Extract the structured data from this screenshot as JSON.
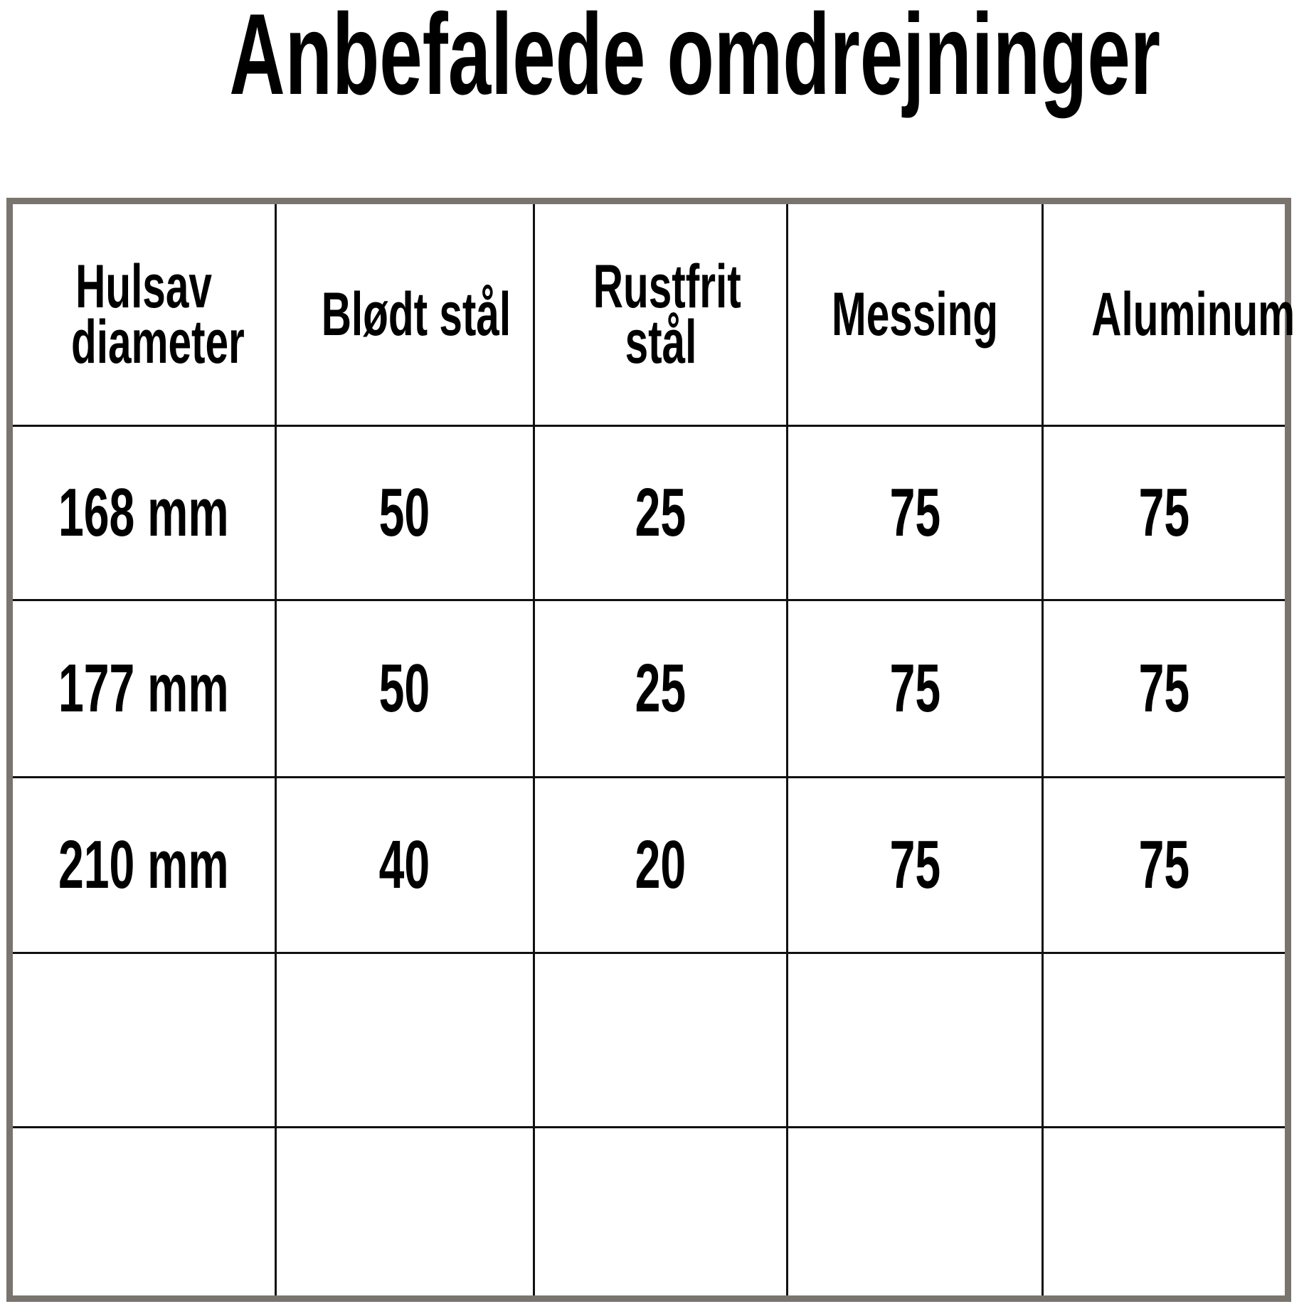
{
  "title": "Anbefalede omdrejninger",
  "table": {
    "headers": [
      "Hulsav diameter",
      "Blødt stål",
      "Rustfrit stål",
      "Messing",
      "Aluminum"
    ],
    "rows": [
      [
        "168 mm",
        "50",
        "25",
        "75",
        "75"
      ],
      [
        "177 mm",
        "50",
        "25",
        "75",
        "75"
      ],
      [
        "210 mm",
        "40",
        "20",
        "75",
        "75"
      ],
      [
        "",
        "",
        "",
        "",
        ""
      ],
      [
        "",
        "",
        "",
        "",
        ""
      ]
    ]
  },
  "colors": {
    "outer_border": "#7a746f",
    "grid_lines": "#111111",
    "text": "#000000"
  }
}
